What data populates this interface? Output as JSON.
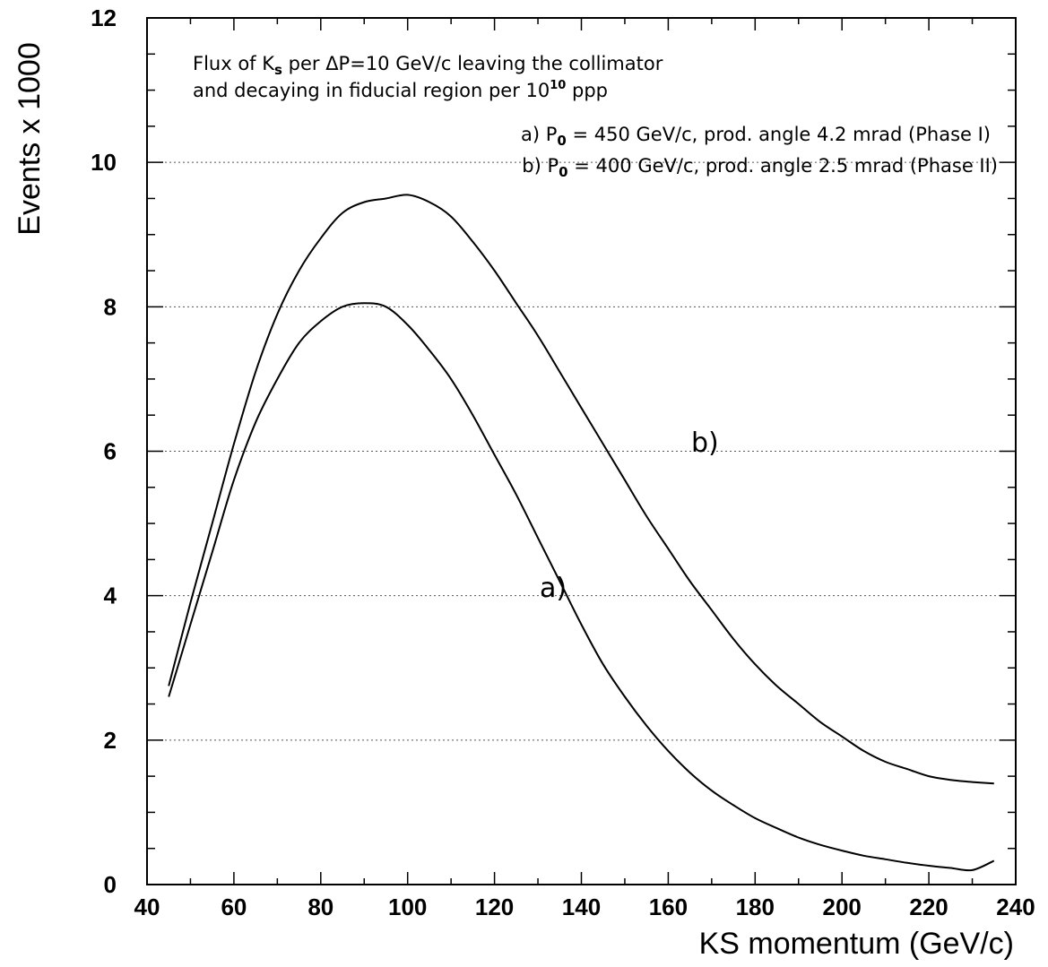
{
  "chart_data": {
    "type": "line",
    "title": "",
    "xlabel": "KS momentum (GeV/c)",
    "ylabel": "Events x 1000",
    "xlim": [
      40,
      240
    ],
    "ylim": [
      0,
      12
    ],
    "x_ticks": [
      40,
      60,
      80,
      100,
      120,
      140,
      160,
      180,
      200,
      220,
      240
    ],
    "y_ticks": [
      0,
      2,
      4,
      6,
      8,
      10,
      12
    ],
    "grid": "horizontal dotted at y = 2, 4, 6, 8, 10",
    "annotations": {
      "line1_prefix": "Flux of K",
      "line1_sub": "s",
      "line1_suffix": " per ΔP=10 GeV/c leaving the collimator",
      "line2_prefix": "and decaying in fiducial region per 10",
      "line2_sup": "10",
      "line2_suffix": " ppp",
      "a_prefix": "a) P",
      "a_sub": "0",
      "a_suffix": " = 450 GeV/c, prod. angle 4.2 mrad (Phase I)",
      "b_prefix": "b) P",
      "b_sub": "0",
      "b_suffix": " = 400 GeV/c, prod. angle 2.5 mrad (Phase II)"
    },
    "series": [
      {
        "name": "a)",
        "x": [
          45,
          50,
          55,
          60,
          65,
          70,
          75,
          80,
          85,
          90,
          95,
          100,
          105,
          110,
          115,
          120,
          125,
          130,
          135,
          140,
          145,
          150,
          155,
          160,
          165,
          170,
          175,
          180,
          185,
          190,
          195,
          200,
          205,
          210,
          215,
          220,
          225,
          230,
          235
        ],
        "y": [
          2.6,
          3.6,
          4.6,
          5.6,
          6.4,
          7.0,
          7.5,
          7.8,
          8.0,
          8.05,
          8.0,
          7.75,
          7.4,
          7.0,
          6.5,
          5.95,
          5.4,
          4.8,
          4.2,
          3.6,
          3.05,
          2.6,
          2.2,
          1.85,
          1.55,
          1.3,
          1.1,
          0.92,
          0.78,
          0.65,
          0.55,
          0.47,
          0.4,
          0.35,
          0.3,
          0.26,
          0.23,
          0.2,
          0.33
        ]
      },
      {
        "name": "b)",
        "x": [
          45,
          50,
          55,
          60,
          65,
          70,
          75,
          80,
          85,
          90,
          95,
          100,
          105,
          110,
          115,
          120,
          125,
          130,
          135,
          140,
          145,
          150,
          155,
          160,
          165,
          170,
          175,
          180,
          185,
          190,
          195,
          200,
          205,
          210,
          215,
          220,
          225,
          230,
          235
        ],
        "y": [
          2.75,
          3.9,
          5.0,
          6.1,
          7.1,
          7.9,
          8.5,
          8.95,
          9.3,
          9.45,
          9.5,
          9.55,
          9.45,
          9.25,
          8.9,
          8.5,
          8.05,
          7.6,
          7.1,
          6.6,
          6.1,
          5.6,
          5.1,
          4.65,
          4.2,
          3.8,
          3.4,
          3.05,
          2.75,
          2.5,
          2.25,
          2.05,
          1.85,
          1.7,
          1.6,
          1.5,
          1.45,
          1.42,
          1.4
        ]
      }
    ]
  }
}
